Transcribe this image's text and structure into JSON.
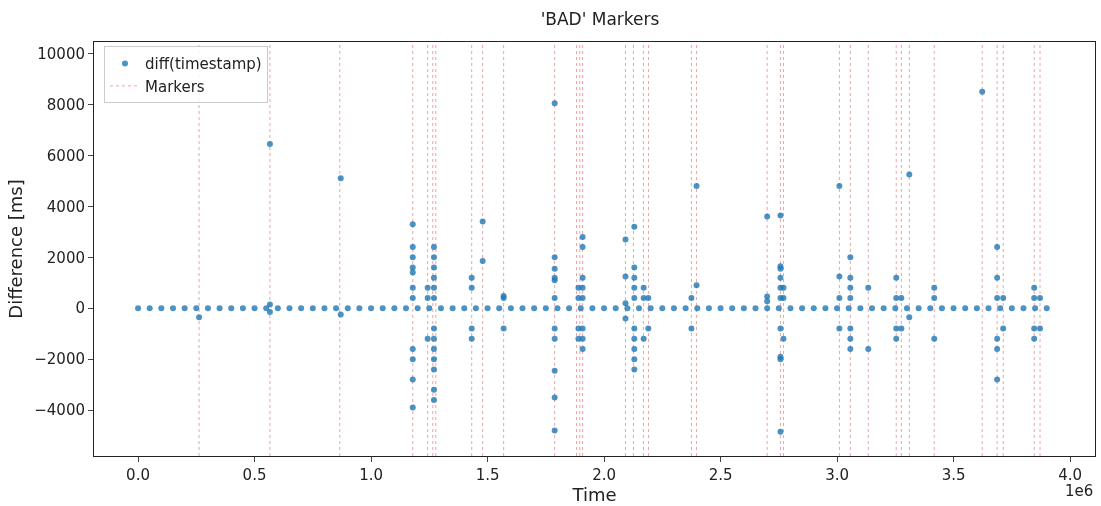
{
  "chart_data": {
    "type": "scatter",
    "title": "'BAD' Markers",
    "xlabel": "Time",
    "ylabel": "Difference [ms]",
    "annotations": [
      "1e6"
    ],
    "xlim": [
      -0.189,
      4.107
    ],
    "xticks": [
      {
        "value": 0,
        "label": "0.0"
      },
      0.5,
      {
        "value": 1,
        "label": "1.0"
      },
      1.5,
      {
        "value": 2,
        "label": "2.0"
      },
      2.5,
      {
        "value": 3,
        "label": "3.0"
      },
      3.5,
      {
        "value": 4,
        "label": "4.0"
      }
    ],
    "ylim": [
      -5800,
      10450
    ],
    "yticks": [
      {
        "value": -4000,
        "label": "−4000"
      },
      {
        "value": -2000,
        "label": "−2000"
      },
      0,
      2000,
      4000,
      6000,
      8000,
      10000
    ],
    "grid": false,
    "legend": "top left",
    "marker": "circle",
    "series": [
      {
        "name": "diff(timestamp)",
        "type": "scatter",
        "color": "#1f77b4",
        "x": [
          0,
          0.05,
          0.1,
          0.15,
          0.2,
          0.25,
          0.3,
          0.35,
          0.4,
          0.45,
          0.5,
          0.55,
          0.6,
          0.65,
          0.7,
          0.75,
          0.8,
          0.85,
          0.9,
          0.95,
          1,
          1.05,
          1.1,
          1.15,
          1.2,
          1.25,
          1.3,
          1.35,
          1.4,
          1.45,
          1.5,
          1.55,
          1.6,
          1.65,
          1.7,
          1.75,
          1.8,
          1.85,
          1.9,
          1.95,
          2,
          2.05,
          2.1,
          2.15,
          2.2,
          2.25,
          2.3,
          2.35,
          2.4,
          2.45,
          2.5,
          2.55,
          2.6,
          2.65,
          2.7,
          2.75,
          2.8,
          2.85,
          2.9,
          2.95,
          3,
          3.05,
          3.1,
          3.15,
          3.2,
          3.25,
          3.3,
          3.35,
          3.4,
          3.45,
          3.5,
          3.55,
          3.6,
          3.65,
          3.7,
          3.75,
          3.8,
          3.85,
          3.9,
          0.262,
          0.566,
          0.566,
          0.566,
          0.87,
          0.87,
          1.179,
          1.179,
          1.179,
          1.179,
          1.179,
          1.179,
          1.179,
          1.179,
          1.179,
          1.179,
          1.179,
          1.243,
          1.243,
          1.243,
          1.27,
          1.27,
          1.27,
          1.27,
          1.27,
          1.27,
          1.27,
          1.27,
          1.27,
          1.27,
          1.27,
          1.27,
          1.27,
          1.432,
          1.432,
          1.432,
          1.432,
          1.479,
          1.479,
          1.569,
          1.569,
          1.569,
          1.788,
          1.788,
          1.788,
          1.788,
          1.788,
          1.788,
          1.788,
          1.788,
          1.788,
          1.788,
          1.788,
          1.89,
          1.89,
          1.89,
          1.89,
          1.908,
          1.908,
          1.908,
          1.908,
          1.908,
          1.908,
          1.908,
          1.908,
          2.092,
          2.092,
          2.092,
          2.092,
          2.13,
          2.13,
          2.13,
          2.13,
          2.13,
          2.13,
          2.13,
          2.13,
          2.13,
          2.13,
          2.17,
          2.17,
          2.17,
          2.19,
          2.19,
          2.375,
          2.375,
          2.397,
          2.397,
          2.7,
          2.7,
          2.7,
          2.757,
          2.757,
          2.757,
          2.757,
          2.757,
          2.757,
          2.757,
          2.757,
          2.757,
          2.757,
          2.77,
          2.77,
          2.77,
          3.01,
          3.01,
          3.01,
          3.01,
          3.057,
          3.057,
          3.057,
          3.057,
          3.057,
          3.057,
          3.057,
          3.134,
          3.134,
          3.254,
          3.254,
          3.254,
          3.254,
          3.276,
          3.276,
          3.31,
          3.31,
          3.417,
          3.417,
          3.417,
          3.623,
          3.687,
          3.687,
          3.687,
          3.687,
          3.687,
          3.687,
          3.713,
          3.713,
          3.846,
          3.846,
          3.846,
          3.846,
          3.871,
          3.871
        ],
        "values": [
          0,
          0,
          0,
          0,
          0,
          0,
          0,
          0,
          0,
          0,
          0,
          0,
          0,
          0,
          0,
          0,
          0,
          0,
          0,
          0,
          0,
          0,
          0,
          0,
          0,
          0,
          0,
          0,
          0,
          0,
          0,
          0,
          0,
          0,
          0,
          0,
          0,
          0,
          0,
          0,
          0,
          0,
          0,
          0,
          0,
          0,
          0,
          0,
          0,
          0,
          0,
          0,
          0,
          0,
          0,
          0,
          0,
          0,
          0,
          0,
          0,
          0,
          0,
          0,
          0,
          0,
          0,
          0,
          0,
          0,
          0,
          0,
          0,
          0,
          0,
          0,
          0,
          0,
          0,
          -350,
          6450,
          150,
          -150,
          5100,
          -250,
          3300,
          2400,
          2000,
          1600,
          1400,
          800,
          400,
          -1600,
          -2000,
          -2800,
          -3900,
          800,
          400,
          -1200,
          2400,
          2000,
          1600,
          1200,
          800,
          400,
          -800,
          -1200,
          -1600,
          -2000,
          -2400,
          -3200,
          -3600,
          1200,
          800,
          -800,
          -1200,
          3400,
          1850,
          400,
          480,
          -800,
          8050,
          2000,
          1550,
          1200,
          1100,
          400,
          -800,
          -1200,
          -2450,
          -3500,
          -4800,
          800,
          400,
          -800,
          -1200,
          2800,
          2400,
          1200,
          800,
          400,
          -800,
          -1200,
          -1600,
          2700,
          1250,
          200,
          -400,
          3200,
          1600,
          1200,
          800,
          400,
          -800,
          -1200,
          -1600,
          -2000,
          -2400,
          800,
          400,
          -1200,
          400,
          -800,
          400,
          -800,
          4800,
          900,
          3600,
          460,
          270,
          3640,
          1650,
          1550,
          1200,
          800,
          400,
          -800,
          -1900,
          -2000,
          -4850,
          800,
          400,
          -1200,
          4800,
          1250,
          400,
          -800,
          2000,
          1200,
          800,
          400,
          -800,
          -1200,
          -1600,
          800,
          -1600,
          1200,
          400,
          -800,
          -1200,
          400,
          -800,
          5250,
          -350,
          800,
          400,
          -1200,
          8500,
          2400,
          1200,
          400,
          -1200,
          -1600,
          -2800,
          400,
          -800,
          800,
          400,
          -800,
          -1200,
          400,
          -800
        ]
      }
    ],
    "ref_lines": [
      {
        "axis": "x",
        "value": 0.262,
        "label": "Markers",
        "color": "#f4a0a0",
        "line_style": "dotted"
      },
      {
        "axis": "x",
        "value": 0.566,
        "color": "#f4a0a0",
        "line_style": "dotted"
      },
      {
        "axis": "x",
        "value": 0.866,
        "color": "#f4a0a0",
        "line_style": "dotted"
      },
      {
        "axis": "x",
        "value": 1.179,
        "color": "#f4a0a0",
        "line_style": "dotted"
      },
      {
        "axis": "x",
        "value": 1.243,
        "color": "#f4a0a0",
        "line_style": "dotted"
      },
      {
        "axis": "x",
        "value": 1.265,
        "color": "#f4a0a0",
        "line_style": "dotted"
      },
      {
        "axis": "x",
        "value": 1.278,
        "color": "#f4a0a0",
        "line_style": "dotted"
      },
      {
        "axis": "x",
        "value": 1.432,
        "color": "#f4a0a0",
        "line_style": "dotted"
      },
      {
        "axis": "x",
        "value": 1.479,
        "color": "#f4a0a0",
        "line_style": "dotted"
      },
      {
        "axis": "x",
        "value": 1.569,
        "color": "#f4a0a0",
        "line_style": "dotted"
      },
      {
        "axis": "x",
        "value": 1.788,
        "color": "#f4a0a0",
        "line_style": "dotted"
      },
      {
        "axis": "x",
        "value": 1.882,
        "color": "#f4a0a0",
        "line_style": "dotted"
      },
      {
        "axis": "x",
        "value": 1.896,
        "color": "#f4a0a0",
        "line_style": "dotted"
      },
      {
        "axis": "x",
        "value": 1.908,
        "color": "#f4a0a0",
        "line_style": "dotted"
      },
      {
        "axis": "x",
        "value": 2.092,
        "color": "#f4a0a0",
        "line_style": "dotted"
      },
      {
        "axis": "x",
        "value": 2.126,
        "color": "#f4a0a0",
        "line_style": "dotted"
      },
      {
        "axis": "x",
        "value": 2.169,
        "color": "#f4a0a0",
        "line_style": "dotted"
      },
      {
        "axis": "x",
        "value": 2.191,
        "color": "#f4a0a0",
        "line_style": "dotted"
      },
      {
        "axis": "x",
        "value": 2.375,
        "color": "#f4a0a0",
        "line_style": "dotted"
      },
      {
        "axis": "x",
        "value": 2.397,
        "color": "#f4a0a0",
        "line_style": "dotted"
      },
      {
        "axis": "x",
        "value": 2.7,
        "color": "#f4a0a0",
        "line_style": "dotted"
      },
      {
        "axis": "x",
        "value": 2.757,
        "color": "#f4a0a0",
        "line_style": "dotted"
      },
      {
        "axis": "x",
        "value": 2.77,
        "color": "#f4a0a0",
        "line_style": "dotted"
      },
      {
        "axis": "x",
        "value": 3.01,
        "color": "#f4a0a0",
        "line_style": "dotted"
      },
      {
        "axis": "x",
        "value": 3.057,
        "color": "#f4a0a0",
        "line_style": "dotted"
      },
      {
        "axis": "x",
        "value": 3.134,
        "color": "#f4a0a0",
        "line_style": "dotted"
      },
      {
        "axis": "x",
        "value": 3.254,
        "color": "#f4a0a0",
        "line_style": "dotted"
      },
      {
        "axis": "x",
        "value": 3.276,
        "color": "#f4a0a0",
        "line_style": "dotted"
      },
      {
        "axis": "x",
        "value": 3.31,
        "color": "#f4a0a0",
        "line_style": "dotted"
      },
      {
        "axis": "x",
        "value": 3.417,
        "color": "#f4a0a0",
        "line_style": "dotted"
      },
      {
        "axis": "x",
        "value": 3.623,
        "color": "#f4a0a0",
        "line_style": "dotted"
      },
      {
        "axis": "x",
        "value": 3.687,
        "color": "#f4a0a0",
        "line_style": "dotted"
      },
      {
        "axis": "x",
        "value": 3.713,
        "color": "#f4a0a0",
        "line_style": "dotted"
      },
      {
        "axis": "x",
        "value": 3.846,
        "color": "#f4a0a0",
        "line_style": "dotted"
      },
      {
        "axis": "x",
        "value": 3.871,
        "color": "#f4a0a0",
        "line_style": "dotted"
      }
    ]
  }
}
